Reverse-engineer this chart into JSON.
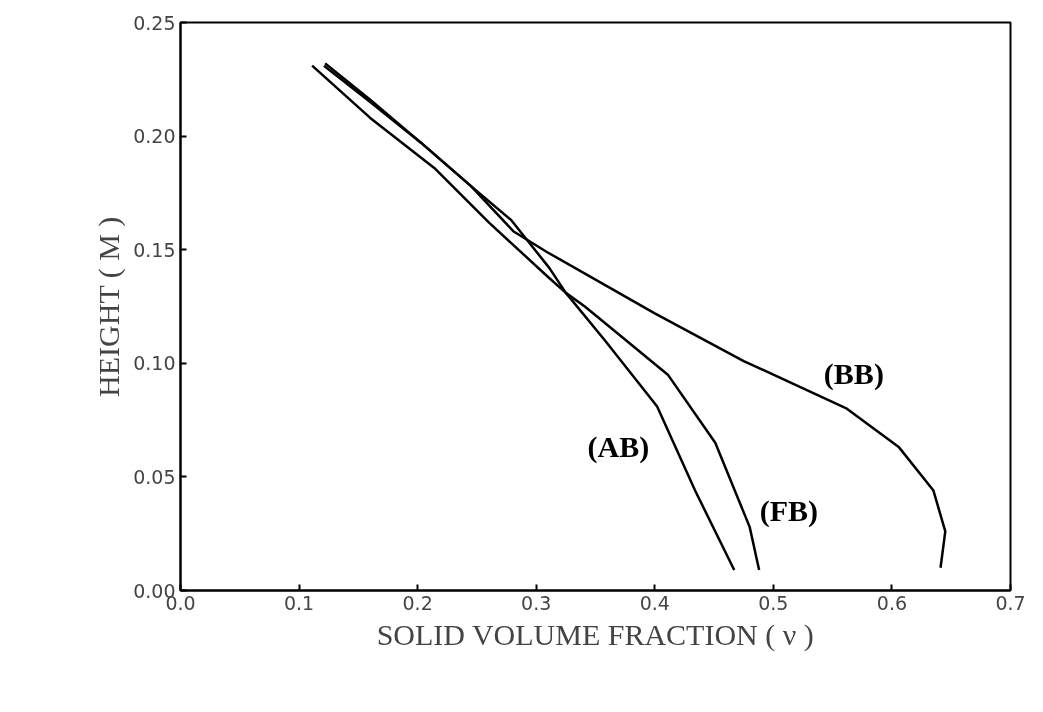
{
  "chart_data": {
    "type": "line",
    "xlabel": "SOLID VOLUME FRACTION ( ν )",
    "ylabel": "HEIGHT ( M )",
    "xlim": [
      0,
      0.7
    ],
    "ylim": [
      0,
      0.25
    ],
    "xticks": [
      {
        "value": 0,
        "label": "0.0"
      },
      0.1,
      0.2,
      0.3,
      0.4,
      0.5,
      0.6,
      0.7
    ],
    "yticks": [
      {
        "value": 0,
        "label": "0.00"
      },
      0.05,
      {
        "value": 0.1,
        "label": "0.10"
      },
      0.15,
      {
        "value": 0.2,
        "label": "0.20"
      },
      0.25
    ],
    "grid": false,
    "marker": "none",
    "line_style": "solid",
    "series": [
      {
        "name": "(AB)",
        "color": "#000000",
        "x": [
          0.121,
          0.16,
          0.203,
          0.245,
          0.279,
          0.311,
          0.325,
          0.358,
          0.402,
          0.434,
          0.467
        ],
        "values": [
          0.231,
          0.215,
          0.197,
          0.178,
          0.163,
          0.142,
          0.131,
          0.11,
          0.081,
          0.044,
          0.009
        ]
      },
      {
        "name": "(FB)",
        "color": "#000000",
        "x": [
          0.111,
          0.16,
          0.214,
          0.26,
          0.31,
          0.325,
          0.341,
          0.369,
          0.411,
          0.451,
          0.48,
          0.488
        ],
        "values": [
          0.231,
          0.208,
          0.186,
          0.162,
          0.138,
          0.131,
          0.125,
          0.113,
          0.095,
          0.065,
          0.028,
          0.009
        ]
      },
      {
        "name": "(BB)",
        "color": "#000000",
        "x": [
          0.122,
          0.16,
          0.203,
          0.245,
          0.281,
          0.309,
          0.4,
          0.475,
          0.562,
          0.606,
          0.635,
          0.645,
          0.641
        ],
        "values": [
          0.232,
          0.216,
          0.197,
          0.178,
          0.158,
          0.149,
          0.122,
          0.101,
          0.08,
          0.063,
          0.044,
          0.026,
          0.01
        ]
      }
    ]
  }
}
